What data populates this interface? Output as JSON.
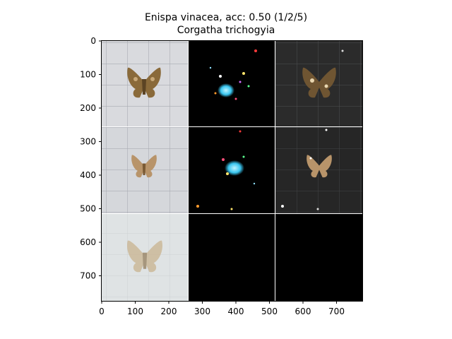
{
  "figure": {
    "title_line1": "Enispa vinacea, acc: 0.50 (1/2/5)",
    "title_line2": "Corgatha trichogyia"
  },
  "axes": {
    "x_ticks": [
      "0",
      "100",
      "200",
      "300",
      "400",
      "500",
      "600",
      "700"
    ],
    "y_ticks": [
      "0",
      "100",
      "200",
      "300",
      "400",
      "500",
      "600",
      "700"
    ]
  },
  "grid_cells": [
    {
      "name": "cell-r1c1-photo",
      "kind": "photo",
      "background": "#d9dade"
    },
    {
      "name": "cell-r1c2-saliency",
      "kind": "saliency-color",
      "background": "#000000"
    },
    {
      "name": "cell-r1c3-masked",
      "kind": "masked",
      "background": "#2b2b2b"
    },
    {
      "name": "cell-r2c1-photo",
      "kind": "photo",
      "background": "#d5d7db"
    },
    {
      "name": "cell-r2c2-saliency",
      "kind": "saliency-color",
      "background": "#000000"
    },
    {
      "name": "cell-r2c3-masked",
      "kind": "masked",
      "background": "#262626"
    },
    {
      "name": "cell-r3c1-photo",
      "kind": "photo",
      "background": "#dfe3e4"
    },
    {
      "name": "cell-r3c2-empty",
      "kind": "empty",
      "background": "#000000"
    },
    {
      "name": "cell-r3c3-empty",
      "kind": "empty",
      "background": "#000000"
    }
  ]
}
